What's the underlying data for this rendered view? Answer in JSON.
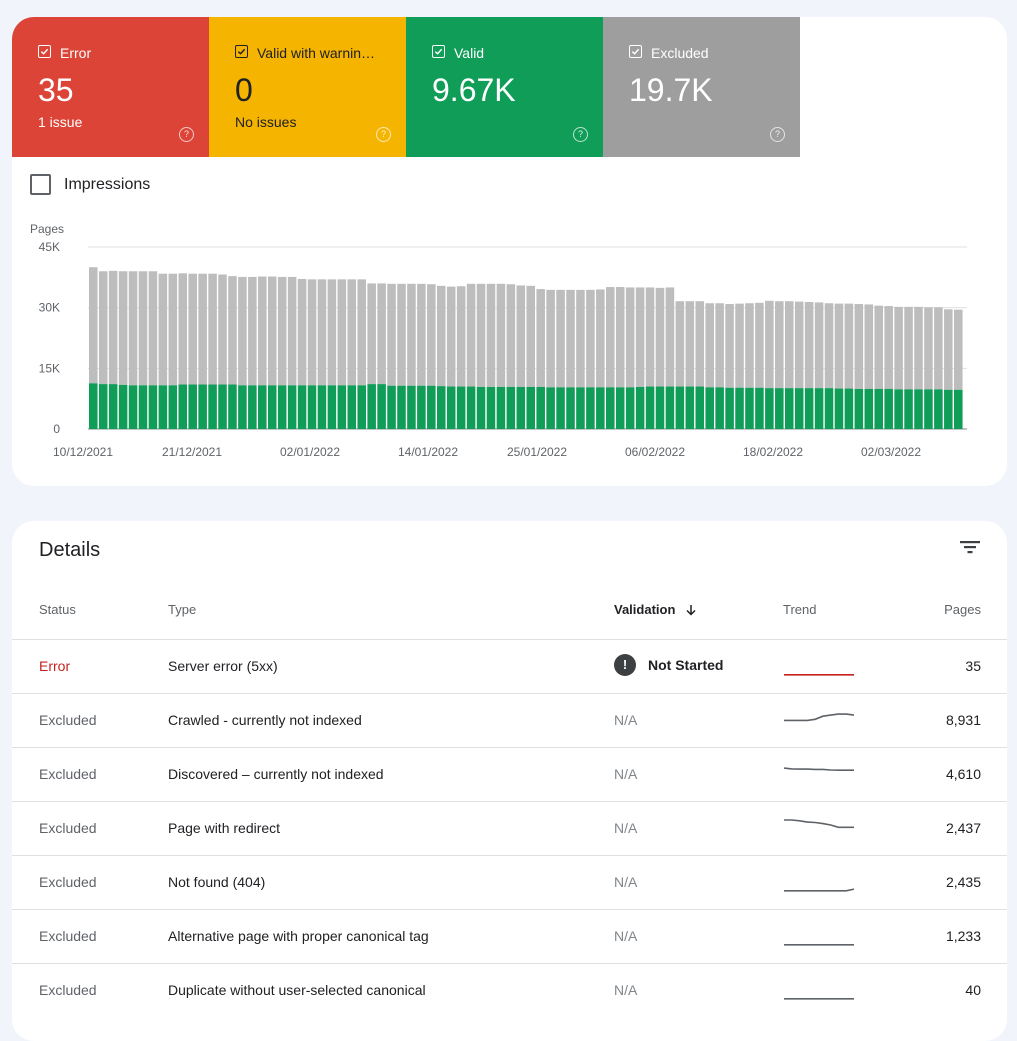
{
  "tiles": [
    {
      "label": "Error",
      "value": "35",
      "sub": "1 issue",
      "kind": "error"
    },
    {
      "label": "Valid with warnin…",
      "value": "0",
      "sub": "No issues",
      "kind": "warning"
    },
    {
      "label": "Valid",
      "value": "9.67K",
      "sub": "",
      "kind": "valid"
    },
    {
      "label": "Excluded",
      "value": "19.7K",
      "sub": "",
      "kind": "excluded"
    }
  ],
  "impressions_label": "Impressions",
  "chart_data": {
    "type": "bar",
    "stacked": true,
    "ylabel": "Pages",
    "ylim": [
      0,
      45000
    ],
    "yticks": [
      "45K",
      "30K",
      "15K",
      "0"
    ],
    "ytick_values": [
      45000,
      30000,
      15000,
      0
    ],
    "xtick_labels": [
      "10/12/2021",
      "21/12/2021",
      "02/01/2022",
      "14/01/2022",
      "25/01/2022",
      "06/02/2022",
      "18/02/2022",
      "02/03/2022"
    ],
    "grid": true,
    "series": [
      {
        "color": "#0f9d58",
        "values": [
          11300,
          11100,
          11100,
          10900,
          10800,
          10800,
          10800,
          10800,
          10800,
          11000,
          11000,
          11000,
          11000,
          11000,
          11000,
          10800,
          10800,
          10800,
          10800,
          10800,
          10800,
          10800,
          10800,
          10800,
          10800,
          10800,
          10800,
          10800,
          11100,
          11100,
          10700,
          10700,
          10700,
          10700,
          10700,
          10600,
          10500,
          10500,
          10500,
          10400,
          10400,
          10400,
          10400,
          10400,
          10400,
          10400,
          10300,
          10300,
          10300,
          10300,
          10300,
          10300,
          10300,
          10300,
          10300,
          10400,
          10500,
          10500,
          10500,
          10500,
          10500,
          10500,
          10300,
          10300,
          10200,
          10200,
          10200,
          10200,
          10100,
          10100,
          10100,
          10100,
          10100,
          10100,
          10100,
          10000,
          10000,
          9900,
          9900,
          9900,
          9900,
          9800,
          9800,
          9800,
          9800,
          9800,
          9700,
          9700
        ]
      },
      {
        "color": "#bdbdbd",
        "values": [
          28700,
          27900,
          28000,
          28100,
          28200,
          28200,
          28200,
          27600,
          27600,
          27500,
          27400,
          27400,
          27400,
          27200,
          26800,
          26800,
          26800,
          26900,
          26900,
          26800,
          26800,
          26300,
          26200,
          26200,
          26200,
          26200,
          26200,
          26200,
          24900,
          24900,
          25200,
          25200,
          25200,
          25200,
          25100,
          24800,
          24700,
          24800,
          25400,
          25500,
          25500,
          25500,
          25400,
          25100,
          25000,
          24200,
          24100,
          24100,
          24100,
          24100,
          24100,
          24200,
          24800,
          24800,
          24700,
          24600,
          24500,
          24400,
          24500,
          21100,
          21100,
          21100,
          20800,
          20800,
          20700,
          20800,
          20900,
          21000,
          21600,
          21500,
          21500,
          21400,
          21300,
          21200,
          21000,
          21000,
          21000,
          21000,
          20900,
          20600,
          20500,
          20400,
          20400,
          20400,
          20300,
          20300,
          19900,
          19800
        ]
      }
    ]
  },
  "details": {
    "title": "Details",
    "headers": {
      "status": "Status",
      "type": "Type",
      "validation": "Validation",
      "trend": "Trend",
      "pages": "Pages"
    },
    "rows": [
      {
        "status": "Error",
        "type": "Server error (5xx)",
        "validation": "Not Started",
        "pages": "35",
        "trend": [
          2,
          2,
          2,
          2,
          2,
          2,
          2,
          2,
          2,
          2
        ],
        "trend_color": "#c5221f"
      },
      {
        "status": "Excluded",
        "type": "Crawled - currently not indexed",
        "validation": "N/A",
        "pages": "8,931",
        "trend": [
          6,
          6,
          6,
          6,
          6.5,
          8,
          8.5,
          9,
          9,
          8.5
        ],
        "trend_color": "#5f6368"
      },
      {
        "status": "Excluded",
        "type": "Discovered – currently not indexed",
        "validation": "N/A",
        "pages": "4,610",
        "trend": [
          9,
          8.6,
          8.5,
          8.5,
          8.4,
          8.4,
          8.1,
          8,
          8,
          8
        ],
        "trend_color": "#5f6368"
      },
      {
        "status": "Excluded",
        "type": "Page with redirect",
        "validation": "N/A",
        "pages": "2,437",
        "trend": [
          10,
          10,
          9.6,
          9,
          8.8,
          8.3,
          7.6,
          6.5,
          6.5,
          6.5
        ],
        "trend_color": "#5f6368"
      },
      {
        "status": "Excluded",
        "type": "Not found (404)",
        "validation": "N/A",
        "pages": "2,435",
        "trend": [
          2,
          2,
          2,
          2,
          2,
          2,
          2,
          2,
          2,
          2.8
        ],
        "trend_color": "#5f6368"
      },
      {
        "status": "Excluded",
        "type": "Alternative page with proper canonical tag",
        "validation": "N/A",
        "pages": "1,233",
        "trend": [
          2,
          2,
          2,
          2,
          2,
          2,
          2,
          2,
          2,
          2
        ],
        "trend_color": "#5f6368"
      },
      {
        "status": "Excluded",
        "type": "Duplicate without user-selected canonical",
        "validation": "N/A",
        "pages": "40",
        "trend": [
          2,
          2,
          2,
          2,
          2,
          2,
          2,
          2,
          2,
          2
        ],
        "trend_color": "#5f6368"
      }
    ]
  },
  "colors": {
    "error": "#db4437",
    "warning": "#f4b400",
    "valid": "#0f9d58",
    "excluded": "#9e9e9e"
  }
}
